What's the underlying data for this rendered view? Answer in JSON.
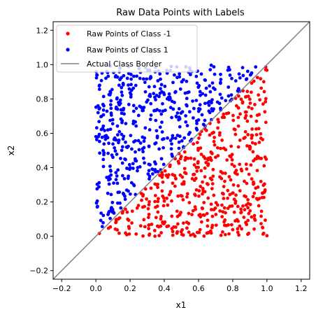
{
  "chart_data": {
    "type": "scatter",
    "title": "Raw Data Points with Labels",
    "xlabel": "x1",
    "ylabel": "x2",
    "xlim": [
      -0.25,
      1.25
    ],
    "ylim": [
      -0.25,
      1.25
    ],
    "xticks": [
      "−0.2",
      "0.0",
      "0.2",
      "0.4",
      "0.6",
      "0.8",
      "1.0",
      "1.2"
    ],
    "yticks": [
      "−0.2",
      "0.0",
      "0.2",
      "0.4",
      "0.6",
      "0.8",
      "1.0",
      "1.2"
    ],
    "grid": false,
    "legend_position": "top-left",
    "series": [
      {
        "name": "Raw Points of Class -1",
        "kind": "scatter",
        "color": "#ff0000",
        "condition": "x2 < x1",
        "count": 500,
        "x_range": [
          0,
          1
        ],
        "y_range": [
          0,
          1
        ]
      },
      {
        "name": "Raw Points of Class 1",
        "kind": "scatter",
        "color": "#0000ff",
        "condition": "x2 > x1",
        "count": 500,
        "x_range": [
          0,
          1
        ],
        "y_range": [
          0,
          1
        ]
      },
      {
        "name": "Actual Class Border",
        "kind": "line",
        "color": "#808080",
        "x": [
          -0.25,
          1.25
        ],
        "y": [
          -0.25,
          1.25
        ]
      }
    ]
  }
}
